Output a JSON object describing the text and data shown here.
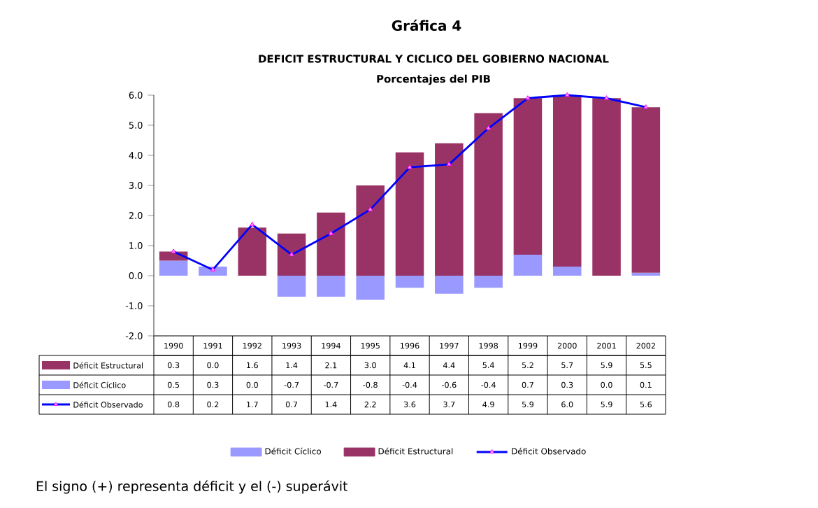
{
  "chart_data": {
    "type": "bar",
    "title": "DEFICIT  ESTRUCTURAL Y CICLICO DEL GOBIERNO NACIONAL",
    "subtitle": "Porcentajes del PIB",
    "annotations": [
      "Gráfica 4",
      "El signo (+) representa déficit y el (-) superávit"
    ],
    "categories": [
      "1990",
      "1991",
      "1992",
      "1993",
      "1994",
      "1995",
      "1996",
      "1997",
      "1998",
      "1999",
      "2000",
      "2001",
      "2002"
    ],
    "stacked": true,
    "series": [
      {
        "name": "Déficit Cíclico",
        "color": "#9999ff",
        "values": [
          0.5,
          0.3,
          0.0,
          -0.7,
          -0.7,
          -0.8,
          -0.4,
          -0.6,
          -0.4,
          0.7,
          0.3,
          0.0,
          0.1
        ],
        "value_labels": [
          "0.5",
          "0.3",
          "0.0",
          "-0.7",
          "-0.7",
          "-0.8",
          "-0.4",
          "-0.6",
          "-0.4",
          "0.7",
          "0.3",
          "0.0",
          "0.1"
        ]
      },
      {
        "name": "Déficit Estructural",
        "color": "#993366",
        "values": [
          0.3,
          0.0,
          1.6,
          1.4,
          2.1,
          3.0,
          4.1,
          4.4,
          5.4,
          5.2,
          5.7,
          5.9,
          5.5
        ],
        "value_labels": [
          "0.3",
          "0.0",
          "1.6",
          "1.4",
          "2.1",
          "3.0",
          "4.1",
          "4.4",
          "5.4",
          "5.2",
          "5.7",
          "5.9",
          "5.5"
        ]
      },
      {
        "name": "Déficit Observado",
        "type": "line",
        "color": "#0000ff",
        "marker": "triangle",
        "values": [
          0.8,
          0.2,
          1.7,
          0.7,
          1.4,
          2.2,
          3.6,
          3.7,
          4.9,
          5.9,
          6.0,
          5.9,
          5.6
        ],
        "value_labels": [
          "0.8",
          "0.2",
          "1.7",
          "0.7",
          "1.4",
          "2.2",
          "3.6",
          "3.7",
          "4.9",
          "5.9",
          "6.0",
          "5.9",
          "5.6"
        ]
      }
    ],
    "ylim": [
      -2,
      6
    ],
    "yticks": [
      {
        "value": -2,
        "label": "-2.0"
      },
      {
        "value": -1,
        "label": "-1.0"
      },
      {
        "value": 0,
        "label": "0.0"
      },
      {
        "value": 1,
        "label": "1.0"
      },
      {
        "value": 2,
        "label": "2.0"
      },
      {
        "value": 3,
        "label": "3.0"
      },
      {
        "value": 4,
        "label": "4.0"
      },
      {
        "value": 5,
        "label": "5.0"
      },
      {
        "value": 6,
        "label": "6.0"
      }
    ],
    "legend": "bottom"
  }
}
